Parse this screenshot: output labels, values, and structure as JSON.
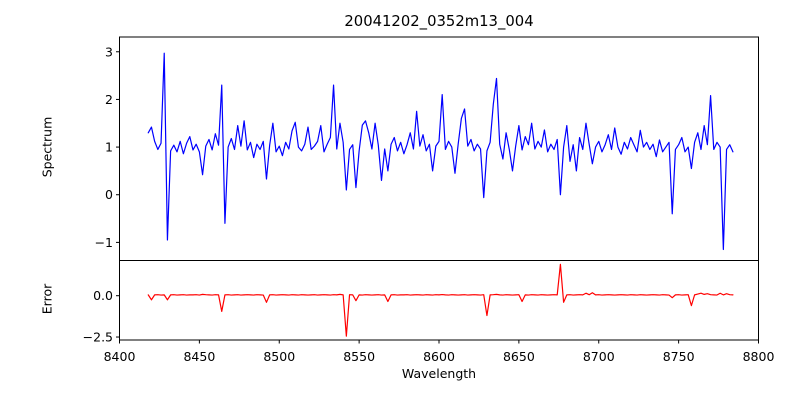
{
  "figure": {
    "background": "#ffffff",
    "frame_color": "#000000"
  },
  "chart_data": {
    "type": "line",
    "title": "20041202_0352m13_004",
    "xlabel": "Wavelength",
    "grid": false,
    "legend": "none",
    "xlim": [
      8400,
      8800
    ],
    "xticks": [
      8400,
      8450,
      8500,
      8550,
      8600,
      8650,
      8700,
      8750,
      8800
    ],
    "x_start": 8418,
    "x_step": 2,
    "panels": [
      {
        "name": "spectrum",
        "ylabel": "Spectrum",
        "ylim": [
          -1.38,
          3.31
        ],
        "yticks": [
          3,
          2,
          1,
          0,
          -1
        ],
        "ytick_labels": [
          "3",
          "2",
          "1",
          "0",
          "−1"
        ],
        "line_color": "#0000ff",
        "values": [
          1.3,
          1.42,
          1.12,
          0.95,
          1.08,
          2.97,
          -0.95,
          0.92,
          1.04,
          0.9,
          1.12,
          0.86,
          1.08,
          1.22,
          0.94,
          1.06,
          0.9,
          0.42,
          1.02,
          1.16,
          0.94,
          1.28,
          1.04,
          2.3,
          -0.6,
          1.0,
          1.18,
          0.95,
          1.45,
          1.02,
          1.55,
          0.94,
          1.1,
          0.78,
          1.06,
          0.95,
          1.12,
          0.33,
          1.04,
          1.5,
          0.9,
          1.02,
          0.82,
          1.1,
          0.96,
          1.34,
          1.52,
          1.0,
          0.92,
          1.06,
          1.42,
          0.95,
          1.02,
          1.12,
          1.45,
          0.9,
          1.06,
          1.2,
          2.3,
          0.96,
          1.5,
          1.1,
          0.1,
          0.95,
          1.05,
          0.15,
          0.92,
          1.46,
          1.55,
          1.3,
          0.96,
          1.5,
          1.04,
          0.3,
          0.96,
          0.5,
          1.06,
          1.2,
          0.92,
          1.1,
          0.86,
          1.05,
          1.3,
          0.96,
          1.75,
          1.02,
          1.26,
          0.92,
          1.06,
          0.5,
          1.02,
          1.12,
          2.1,
          0.95,
          1.12,
          1.0,
          0.45,
          1.06,
          1.6,
          1.8,
          1.02,
          1.16,
          0.92,
          1.06,
          0.96,
          -0.06,
          0.92,
          1.1,
          1.9,
          2.44,
          1.06,
          0.75,
          1.3,
          0.95,
          0.5,
          1.02,
          1.45,
          0.94,
          1.22,
          1.05,
          1.5,
          0.96,
          1.12,
          1.0,
          1.36,
          0.9,
          1.06,
          0.95,
          1.16,
          0.0,
          1.0,
          1.45,
          0.7,
          1.05,
          0.5,
          1.2,
          0.95,
          1.5,
          1.06,
          0.65,
          1.0,
          1.12,
          0.9,
          1.05,
          1.26,
          0.95,
          1.4,
          1.0,
          0.85,
          1.1,
          0.96,
          1.2,
          1.05,
          0.9,
          1.35,
          1.0,
          1.1,
          0.95,
          1.06,
          0.8,
          1.15,
          0.9,
          1.0,
          1.1,
          -0.4,
          0.95,
          1.05,
          1.2,
          0.9,
          1.0,
          0.55,
          1.1,
          1.3,
          0.95,
          1.45,
          1.05,
          2.08,
          0.95,
          1.1,
          1.0,
          -1.15,
          0.95,
          1.05,
          0.9
        ]
      },
      {
        "name": "error",
        "ylabel": "Error",
        "ylim": [
          -2.68,
          2.13
        ],
        "yticks": [
          0.0,
          -2.5
        ],
        "ytick_labels": [
          "0.0",
          "−2.5"
        ],
        "line_color": "#ff0000",
        "values": [
          0.05,
          -0.25,
          0.05,
          0.06,
          0.04,
          0.05,
          -0.25,
          0.05,
          0.06,
          0.04,
          0.05,
          0.06,
          0.04,
          0.05,
          0.05,
          0.06,
          0.04,
          0.08,
          0.06,
          0.05,
          0.04,
          0.06,
          0.05,
          -0.95,
          0.05,
          0.06,
          0.04,
          0.05,
          0.06,
          0.04,
          0.05,
          0.06,
          0.05,
          0.04,
          0.06,
          0.05,
          0.04,
          -0.4,
          0.05,
          0.06,
          0.04,
          0.05,
          0.06,
          0.05,
          0.04,
          0.06,
          0.05,
          0.04,
          0.06,
          0.05,
          0.04,
          0.05,
          0.06,
          0.04,
          0.05,
          0.06,
          0.05,
          0.04,
          0.06,
          0.05,
          0.08,
          0.05,
          -2.45,
          0.06,
          0.05,
          -0.3,
          0.05,
          0.04,
          0.06,
          0.05,
          0.04,
          0.05,
          0.06,
          0.04,
          0.05,
          -0.35,
          0.05,
          0.06,
          0.04,
          0.05,
          0.05,
          0.06,
          0.04,
          0.05,
          0.06,
          0.05,
          0.04,
          0.06,
          0.05,
          0.04,
          0.06,
          0.05,
          0.07,
          0.05,
          0.04,
          0.06,
          0.05,
          0.04,
          0.05,
          0.06,
          0.04,
          0.05,
          0.06,
          0.05,
          0.04,
          0.06,
          -1.2,
          0.05,
          0.06,
          0.08,
          0.05,
          0.04,
          0.06,
          0.05,
          0.04,
          0.05,
          0.06,
          -0.35,
          0.05,
          0.04,
          0.06,
          0.05,
          0.04,
          0.06,
          0.05,
          0.04,
          0.05,
          0.06,
          0.05,
          1.9,
          -0.4,
          0.05,
          0.06,
          0.04,
          0.05,
          0.06,
          0.05,
          0.15,
          0.06,
          0.18,
          0.05,
          0.06,
          0.04,
          0.05,
          0.06,
          0.05,
          0.04,
          0.05,
          0.06,
          0.05,
          0.04,
          0.06,
          0.05,
          0.04,
          0.06,
          0.05,
          0.04,
          0.05,
          0.06,
          0.05,
          0.04,
          0.06,
          0.05,
          0.04,
          -0.12,
          0.05,
          0.06,
          0.04,
          0.05,
          0.06,
          -0.6,
          0.05,
          0.1,
          0.15,
          0.08,
          0.12,
          0.06,
          0.05,
          0.04,
          0.15,
          0.05,
          0.12,
          0.06,
          0.05
        ]
      }
    ]
  }
}
